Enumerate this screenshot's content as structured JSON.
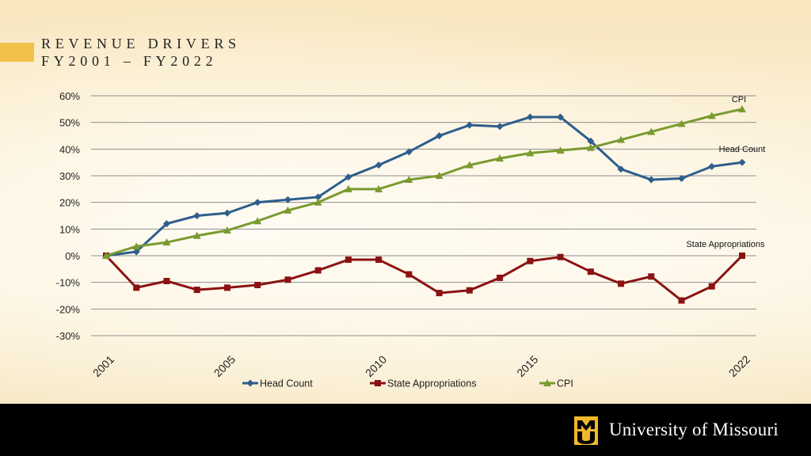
{
  "title": {
    "line1": "REVENUE DRIVERS",
    "line2": "FY2001 – FY2022"
  },
  "footer": {
    "university": "University of Missouri"
  },
  "chart_data": {
    "type": "line",
    "x": [
      2001,
      2002,
      2003,
      2004,
      2005,
      2006,
      2007,
      2008,
      2009,
      2010,
      2011,
      2012,
      2013,
      2014,
      2015,
      2016,
      2017,
      2018,
      2019,
      2020,
      2021,
      2022
    ],
    "x_tick_labels": [
      "2001",
      "2005",
      "2010",
      "2015",
      "2022"
    ],
    "x_ticks": [
      2001,
      2005,
      2010,
      2015,
      2022
    ],
    "y_tick_labels": [
      "60%",
      "50%",
      "40%",
      "30%",
      "20%",
      "10%",
      "0%",
      "-10%",
      "-20%",
      "-30%"
    ],
    "ylim": [
      -30,
      60
    ],
    "grid": true,
    "legend_position": "bottom",
    "series": [
      {
        "name": "Head Count",
        "color": "#2e5e8c",
        "marker": "diamond",
        "values": [
          0,
          1.5,
          12,
          15,
          16,
          20,
          21,
          22,
          29.5,
          34,
          39,
          45,
          49,
          48.5,
          52,
          52,
          43,
          32.5,
          28.5,
          29,
          33.5,
          35
        ]
      },
      {
        "name": "State Appropriations",
        "color": "#8b1212",
        "marker": "square",
        "values": [
          0,
          -12,
          -9.5,
          -12.8,
          -12,
          -11,
          -9,
          -5.5,
          -1.5,
          -1.5,
          -7,
          -14,
          -13,
          -8.3,
          -2,
          -0.5,
          -6,
          -10.5,
          -7.8,
          -16.8,
          -11.5,
          0
        ]
      },
      {
        "name": "CPI",
        "color": "#7a9a30",
        "marker": "triangle",
        "values": [
          0,
          3.5,
          5,
          7.5,
          9.5,
          13,
          17,
          20,
          25,
          25,
          28.5,
          30,
          34,
          36.5,
          38.5,
          39.5,
          40.5,
          43.5,
          46.5,
          49.5,
          52.5,
          55
        ]
      }
    ],
    "annotations": [
      {
        "text": "CPI",
        "series": "CPI"
      },
      {
        "text": "Head Count",
        "series": "Head Count"
      },
      {
        "text": "State Appropriations",
        "series": "State Appropriations"
      }
    ]
  }
}
